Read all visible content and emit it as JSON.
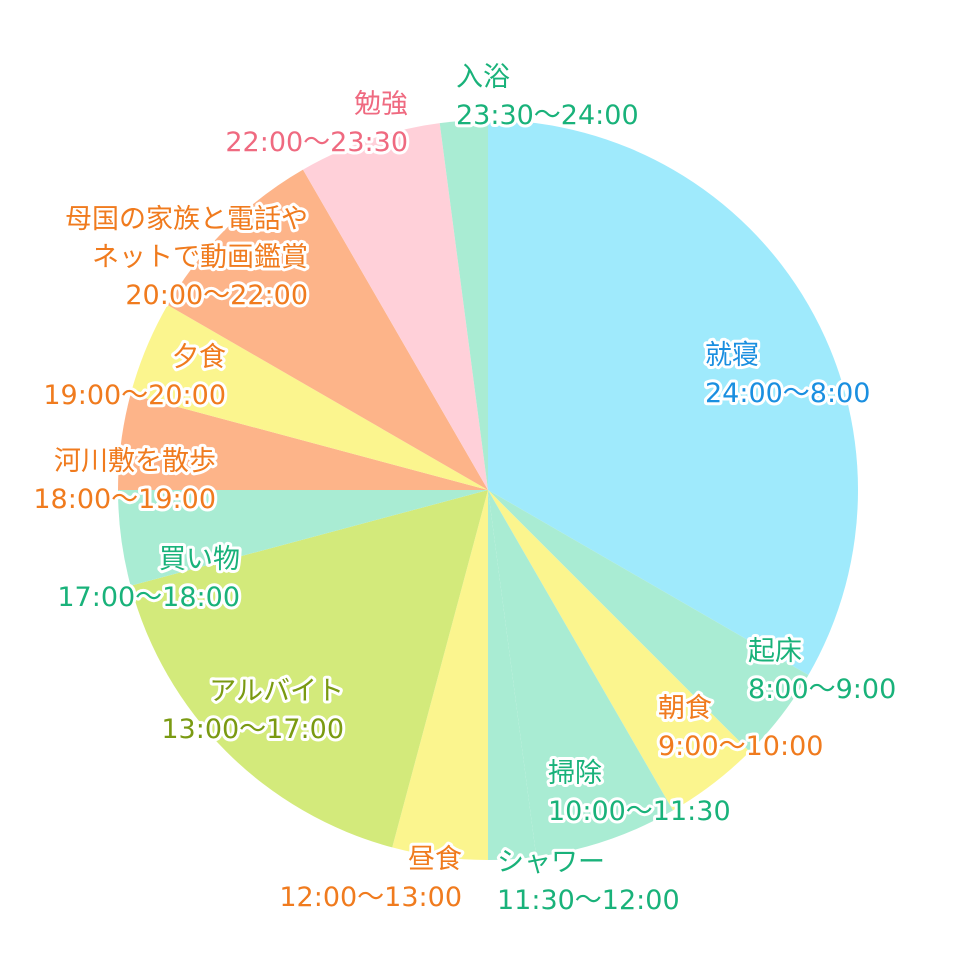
{
  "chart_data": {
    "type": "pie",
    "start_angle_deg": 0,
    "direction": "clockwise",
    "slices": [
      {
        "name": "就寝",
        "time": "24:00〜8:00",
        "value": 8,
        "fill": "#9feafc",
        "text_color": "#1a8fe0"
      },
      {
        "name": "起床",
        "time": "8:00〜9:00",
        "value": 1,
        "fill": "#a9ecd3",
        "text_color": "#19b27a"
      },
      {
        "name": "朝食",
        "time": "9:00〜10:00",
        "value": 1,
        "fill": "#fbf58e",
        "text_color": "#f07b1e"
      },
      {
        "name": "掃除",
        "time": "10:00〜11:30",
        "value": 1.5,
        "fill": "#a9ecd3",
        "text_color": "#19b27a"
      },
      {
        "name": "シャワー",
        "time": "11:30〜12:00",
        "value": 0.5,
        "fill": "#a9ecd3",
        "text_color": "#19b27a"
      },
      {
        "name": "昼食",
        "time": "12:00〜13:00",
        "value": 1,
        "fill": "#fbf58e",
        "text_color": "#f07b1e"
      },
      {
        "name": "アルバイト",
        "time": "13:00〜17:00",
        "value": 4,
        "fill": "#d3ea7b",
        "text_color": "#7a9a12"
      },
      {
        "name": "買い物",
        "time": "17:00〜18:00",
        "value": 1,
        "fill": "#a9ecd3",
        "text_color": "#19b27a"
      },
      {
        "name": "河川敷を散歩",
        "time": "18:00〜19:00",
        "value": 1,
        "fill": "#fdb489",
        "text_color": "#f07b1e"
      },
      {
        "name": "夕食",
        "time": "19:00〜20:00",
        "value": 1,
        "fill": "#fbf58e",
        "text_color": "#f07b1e"
      },
      {
        "name": "母国の家族と電話や\nネットで動画鑑賞",
        "time": "20:00〜22:00",
        "value": 2,
        "fill": "#fdb489",
        "text_color": "#f07b1e"
      },
      {
        "name": "勉強",
        "time": "22:00〜23:30",
        "value": 1.5,
        "fill": "#ffd0d9",
        "text_color": "#ef6a80"
      },
      {
        "name": "入浴",
        "time": "23:30〜24:00",
        "value": 0.5,
        "fill": "#a9ecd3",
        "text_color": "#19b27a"
      }
    ]
  }
}
